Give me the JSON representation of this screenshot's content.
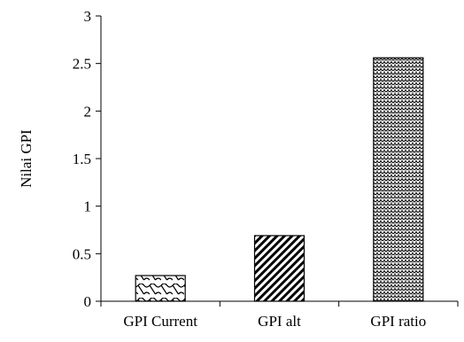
{
  "chart_data": {
    "type": "bar",
    "title": "",
    "xlabel": "",
    "ylabel": "Nilai GPI",
    "categories": [
      "GPI Current",
      "GPI alt",
      "GPI ratio"
    ],
    "values": [
      0.27,
      0.69,
      2.56
    ],
    "ylim": [
      0,
      3
    ],
    "yticks": [
      0,
      0.5,
      1,
      1.5,
      2,
      2.5,
      3
    ],
    "ytick_labels": [
      "0",
      "0.5",
      "1",
      "1.5",
      "2",
      "2.5",
      "3"
    ],
    "grid": false,
    "legend": "none",
    "bar_patterns": [
      "wave",
      "diagonal-stripes",
      "zigzag"
    ],
    "colors": {
      "axis": "#000000",
      "bar_outline": "#000000",
      "pattern_ink": "#000000",
      "background": "#ffffff"
    }
  }
}
